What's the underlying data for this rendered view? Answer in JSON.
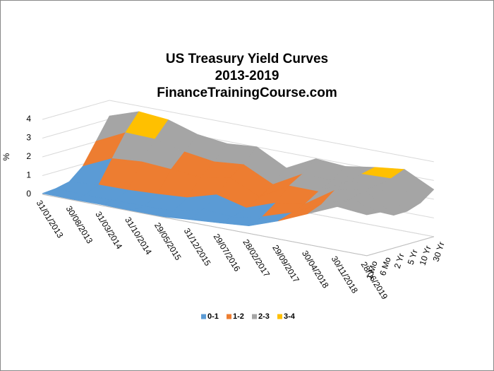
{
  "chart_data": {
    "type": "surface",
    "title": [
      "US Treasury Yield Curves",
      "2013-2019",
      "FinanceTrainingCourse.com"
    ],
    "y_label": "%",
    "categories": [
      "31/01/2013",
      "30/08/2013",
      "31/03/2014",
      "31/10/2014",
      "29/05/2015",
      "31/12/2015",
      "29/07/2016",
      "28/02/2017",
      "29/09/2017",
      "30/04/2018",
      "30/11/2018",
      "28/06/2019"
    ],
    "series": [
      {
        "name": "1 Mo",
        "values": [
          0.05,
          0.03,
          0.05,
          0.01,
          0.01,
          0.14,
          0.26,
          0.4,
          0.96,
          1.64,
          2.32,
          2.18
        ]
      },
      {
        "name": "6 Mo",
        "values": [
          0.11,
          0.05,
          0.07,
          0.05,
          0.08,
          0.49,
          0.38,
          0.69,
          1.2,
          1.93,
          2.52,
          2.12
        ]
      },
      {
        "name": "2 Yr",
        "values": [
          0.27,
          0.4,
          0.42,
          0.5,
          0.61,
          1.06,
          0.66,
          1.22,
          1.47,
          2.49,
          2.8,
          1.75
        ]
      },
      {
        "name": "5 Yr",
        "values": [
          0.88,
          1.6,
          1.73,
          1.62,
          1.49,
          1.76,
          1.03,
          1.93,
          1.92,
          2.8,
          2.84,
          1.76
        ]
      },
      {
        "name": "10 Yr",
        "values": [
          2.02,
          2.78,
          2.73,
          2.35,
          2.12,
          2.27,
          1.5,
          2.36,
          2.33,
          2.95,
          3.01,
          2.0
        ]
      },
      {
        "name": "30 Yr",
        "values": [
          3.17,
          3.7,
          3.56,
          3.07,
          2.88,
          3.01,
          2.18,
          2.97,
          2.86,
          3.11,
          3.3,
          2.52
        ]
      }
    ],
    "legend": [
      {
        "name": "0-1",
        "color": "#5b9bd5"
      },
      {
        "name": "1-2",
        "color": "#ed7d31"
      },
      {
        "name": "2-3",
        "color": "#a5a5a5"
      },
      {
        "name": "3-4",
        "color": "#ffc000"
      }
    ],
    "ylim": [
      0,
      4
    ],
    "yticks": [
      0,
      1,
      2,
      3,
      4
    ],
    "grid": true
  }
}
